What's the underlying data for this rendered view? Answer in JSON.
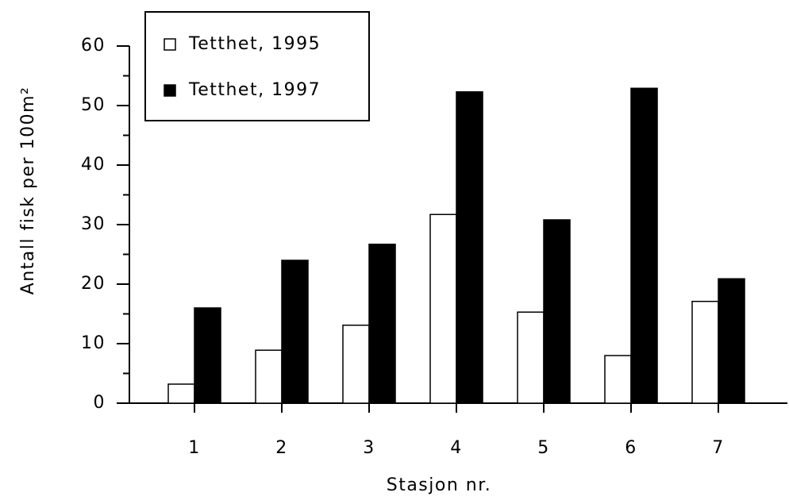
{
  "chart_data": {
    "type": "bar",
    "y_label": "Antall fisk per 100m²",
    "x_label": "Stasjon nr.",
    "categories": [
      "1",
      "2",
      "3",
      "4",
      "5",
      "6",
      "7"
    ],
    "series": [
      {
        "name": "Tetthet, 1995",
        "color": "#ffffff",
        "values": [
          3.2,
          8.9,
          13.1,
          31.7,
          15.3,
          8.0,
          17.1
        ]
      },
      {
        "name": "Tetthet, 1997",
        "color": "#000000",
        "values": [
          16.0,
          24.0,
          26.7,
          52.3,
          30.8,
          52.9,
          20.9
        ]
      }
    ],
    "ylim": [
      0,
      60
    ],
    "yticks": [
      0,
      10,
      20,
      30,
      40,
      50,
      60
    ],
    "yminorticks": [
      5,
      15,
      25,
      35,
      45,
      55
    ],
    "legend": "upper left"
  }
}
